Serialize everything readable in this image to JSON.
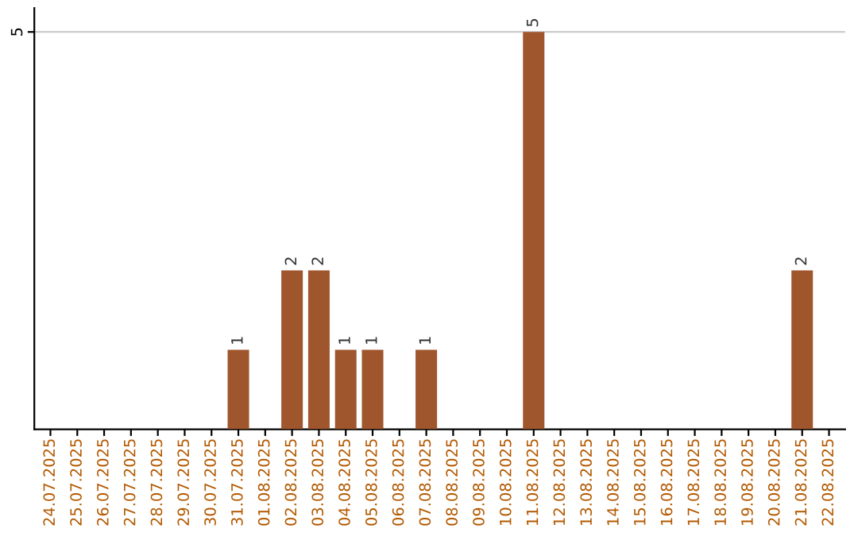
{
  "chart_data": {
    "type": "bar",
    "categories": [
      "24.07.2025",
      "25.07.2025",
      "26.07.2025",
      "27.07.2025",
      "28.07.2025",
      "29.07.2025",
      "30.07.2025",
      "31.07.2025",
      "01.08.2025",
      "02.08.2025",
      "03.08.2025",
      "04.08.2025",
      "05.08.2025",
      "06.08.2025",
      "07.08.2025",
      "08.08.2025",
      "09.08.2025",
      "10.08.2025",
      "11.08.2025",
      "12.08.2025",
      "13.08.2025",
      "14.08.2025",
      "15.08.2025",
      "16.08.2025",
      "17.08.2025",
      "18.08.2025",
      "19.08.2025",
      "20.08.2025",
      "21.08.2025",
      "22.08.2025"
    ],
    "values": [
      0,
      0,
      0,
      0,
      0,
      0,
      0,
      1,
      0,
      2,
      2,
      1,
      1,
      0,
      1,
      0,
      0,
      0,
      5,
      0,
      0,
      0,
      0,
      0,
      0,
      0,
      0,
      0,
      2,
      0
    ],
    "value_labels": [
      null,
      null,
      null,
      null,
      null,
      null,
      null,
      "1",
      null,
      "2",
      "2",
      "1",
      "1",
      null,
      "1",
      null,
      null,
      null,
      "5",
      null,
      null,
      null,
      null,
      null,
      null,
      null,
      null,
      null,
      "2",
      null
    ],
    "color": "#a0562c",
    "ylim": [
      0,
      5.3
    ],
    "yticks": [
      5
    ],
    "grid": "y",
    "legend": false
  }
}
